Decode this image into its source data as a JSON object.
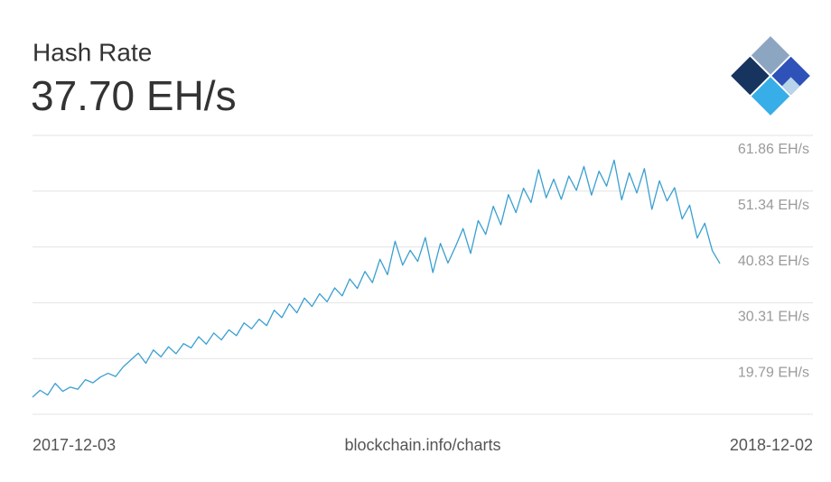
{
  "chart_data": {
    "type": "line",
    "title": "Hash Rate",
    "current_value": "37.70 EH/s",
    "source": "blockchain.info/charts",
    "xlim": [
      "2017-12-03",
      "2018-12-02"
    ],
    "ylim": [
      9.27,
      61.86
    ],
    "yticks": [
      {
        "value": 19.79,
        "label": "19.79 EH/s"
      },
      {
        "value": 30.31,
        "label": "30.31 EH/s"
      },
      {
        "value": 40.83,
        "label": "40.83 EH/s"
      },
      {
        "value": 51.34,
        "label": "51.34 EH/s"
      },
      {
        "value": 61.86,
        "label": "61.86 EH/s"
      }
    ],
    "grid": true,
    "color": "#3a9fd1",
    "values": [
      12.5,
      13.8,
      12.9,
      15.1,
      13.6,
      14.4,
      14.0,
      15.8,
      15.2,
      16.3,
      17.0,
      16.4,
      18.2,
      19.5,
      20.8,
      18.9,
      21.4,
      20.1,
      22.0,
      20.7,
      22.6,
      21.8,
      23.9,
      22.5,
      24.6,
      23.3,
      25.2,
      24.1,
      26.5,
      25.4,
      27.2,
      26.0,
      28.9,
      27.5,
      30.1,
      28.4,
      31.2,
      29.6,
      32.0,
      30.5,
      33.1,
      31.6,
      34.8,
      33.0,
      36.2,
      34.1,
      38.5,
      35.6,
      41.9,
      37.4,
      40.2,
      38.1,
      42.6,
      36.0,
      41.5,
      37.8,
      40.9,
      44.3,
      39.6,
      45.8,
      43.2,
      48.5,
      45.0,
      50.7,
      47.3,
      51.9,
      49.2,
      55.4,
      50.1,
      53.6,
      49.8,
      54.2,
      51.5,
      56.0,
      50.6,
      55.1,
      52.3,
      57.2,
      49.7,
      54.8,
      51.0,
      55.6,
      47.9,
      53.3,
      49.5,
      52.0,
      46.1,
      48.7,
      42.5,
      45.3,
      40.1,
      37.7
    ]
  }
}
